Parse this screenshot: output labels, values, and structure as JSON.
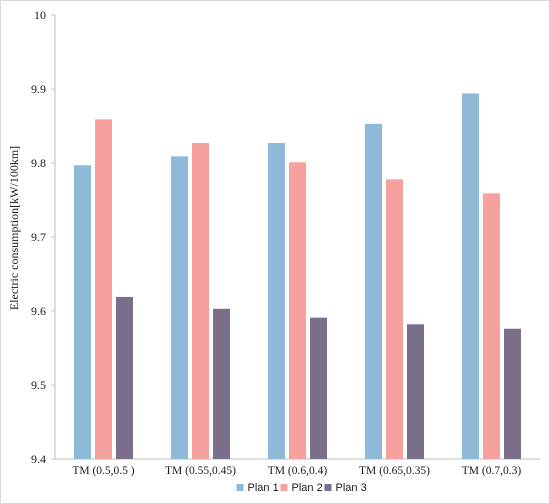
{
  "chart_data": {
    "type": "bar",
    "title": "",
    "xlabel": "",
    "ylabel": "Electric consumption[kW/100km]",
    "ylim": [
      9.4,
      10.0
    ],
    "yticks": [
      "9.4",
      "9.5",
      "9.6",
      "9.7",
      "9.8",
      "9.9",
      "10"
    ],
    "grid": false,
    "legend_position": "bottom",
    "categories": [
      "TM (0.5,0.5 )",
      "TM (0.55,0.45)",
      "TM (0.6,0.4)",
      "TM (0.65,0.35)",
      "TM (0.7,0.3)"
    ],
    "series": [
      {
        "name": "Plan 1",
        "color": "#8ebad8",
        "values": [
          9.797,
          9.809,
          9.827,
          9.853,
          9.894
        ]
      },
      {
        "name": "Plan 2",
        "color": "#f7a19f",
        "values": [
          9.859,
          9.827,
          9.801,
          9.778,
          9.759
        ]
      },
      {
        "name": "Plan 3",
        "color": "#7a6e8a",
        "values": [
          9.619,
          9.603,
          9.591,
          9.582,
          9.576
        ]
      }
    ]
  }
}
